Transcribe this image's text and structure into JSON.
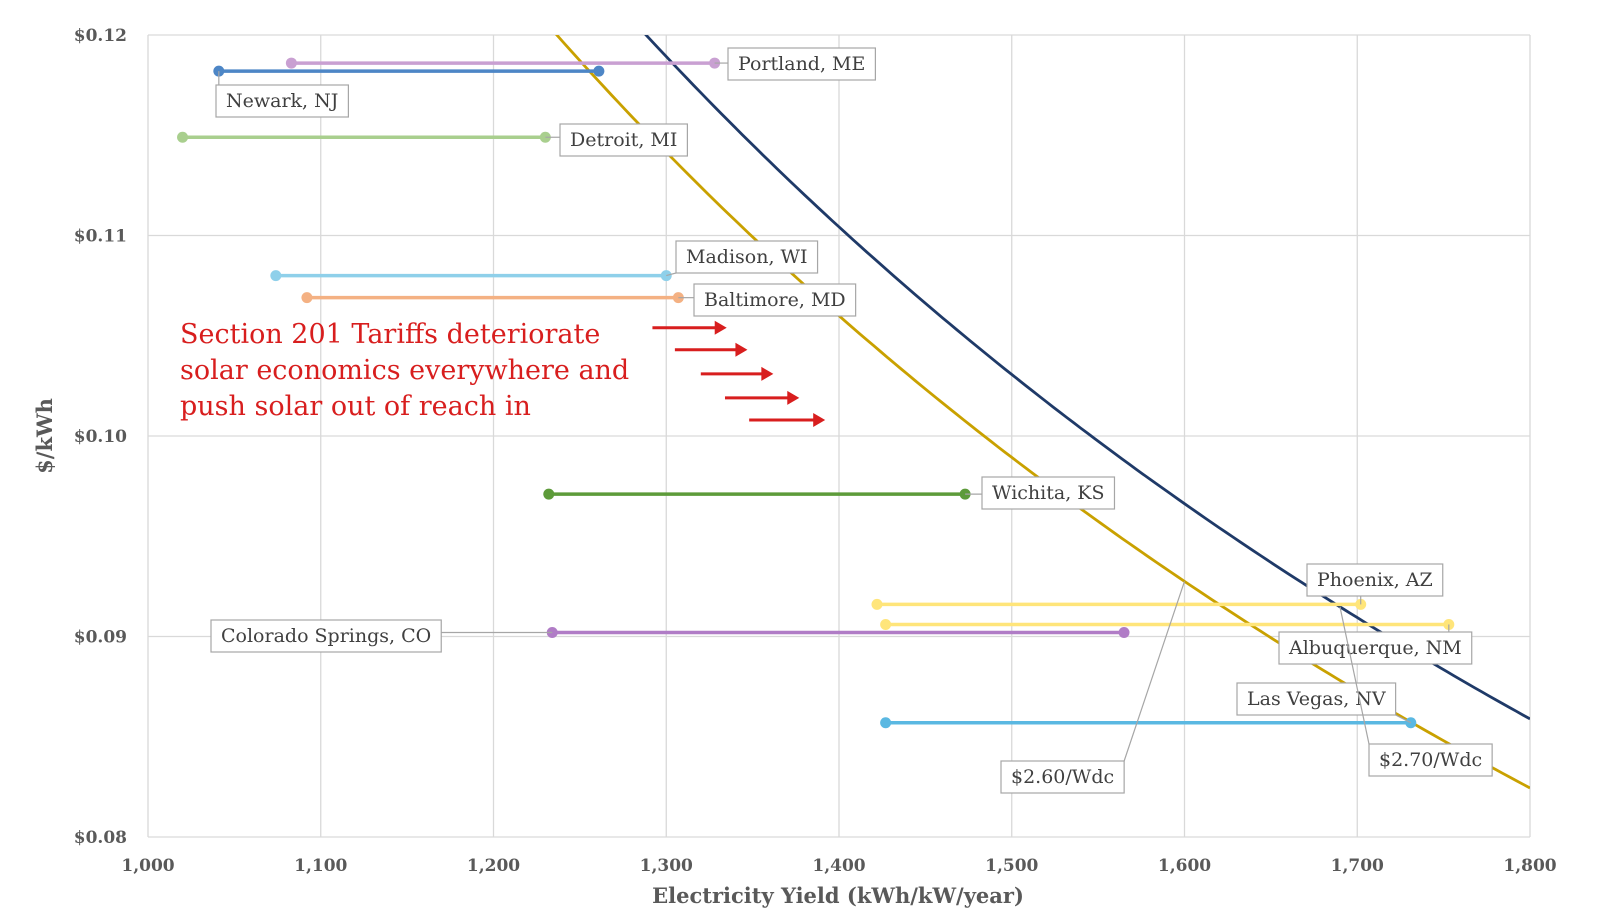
{
  "chart_data": {
    "type": "line",
    "xlabel": "Electricity Yield (kWh/kW/year)",
    "ylabel": "$/kWh",
    "xlim": [
      1000,
      1800
    ],
    "ylim": [
      0.08,
      0.12
    ],
    "x_ticks": [
      "1,000",
      "1,100",
      "1,200",
      "1,300",
      "1,400",
      "1,500",
      "1,600",
      "1,700",
      "1,800"
    ],
    "y_ticks": [
      "$0.08",
      "$0.09",
      "$0.10",
      "$0.11",
      "$0.12"
    ],
    "grid": true,
    "annotation": {
      "lines": [
        "Section 201 Tariffs deteriorate",
        "solar economics everywhere and",
        "push solar out of reach in"
      ],
      "color": "#d81e1e"
    },
    "curves": [
      {
        "name": "$2.60/Wdc",
        "color": "#c9a100",
        "k": 148.4,
        "labelAt": 1600
      },
      {
        "name": "$2.70/Wdc",
        "color": "#1f3a68",
        "k": 154.6,
        "labelAt": 1690
      }
    ],
    "cities": [
      {
        "name": "Portland, ME",
        "x1": 1083,
        "x2": 1328,
        "y": 0.1186,
        "color": "#c9a0d2"
      },
      {
        "name": "Newark, NJ",
        "x1": 1041,
        "x2": 1261,
        "y": 0.1182,
        "color": "#4d86c6"
      },
      {
        "name": "Detroit, MI",
        "x1": 1020,
        "x2": 1230,
        "y": 0.1149,
        "color": "#a9cf8e"
      },
      {
        "name": "Madison, WI",
        "x1": 1074,
        "x2": 1300,
        "y": 0.108,
        "color": "#8fd0ea"
      },
      {
        "name": "Baltimore, MD",
        "x1": 1092,
        "x2": 1307,
        "y": 0.1069,
        "color": "#f4b183"
      },
      {
        "name": "Wichita, KS",
        "x1": 1232,
        "x2": 1473,
        "y": 0.0971,
        "color": "#5d9b3a"
      },
      {
        "name": "Phoenix, AZ",
        "x1": 1422,
        "x2": 1702,
        "y": 0.0916,
        "color": "#ffe57a"
      },
      {
        "name": "Albuquerque, NM",
        "x1": 1427,
        "x2": 1753,
        "y": 0.0906,
        "color": "#ffe57a"
      },
      {
        "name": "Colorado Springs, CO",
        "x1": 1234,
        "x2": 1565,
        "y": 0.0902,
        "color": "#b07cc6"
      },
      {
        "name": "Las Vegas, NV",
        "x1": 1427,
        "x2": 1731,
        "y": 0.0857,
        "color": "#5ab8e2"
      }
    ]
  }
}
